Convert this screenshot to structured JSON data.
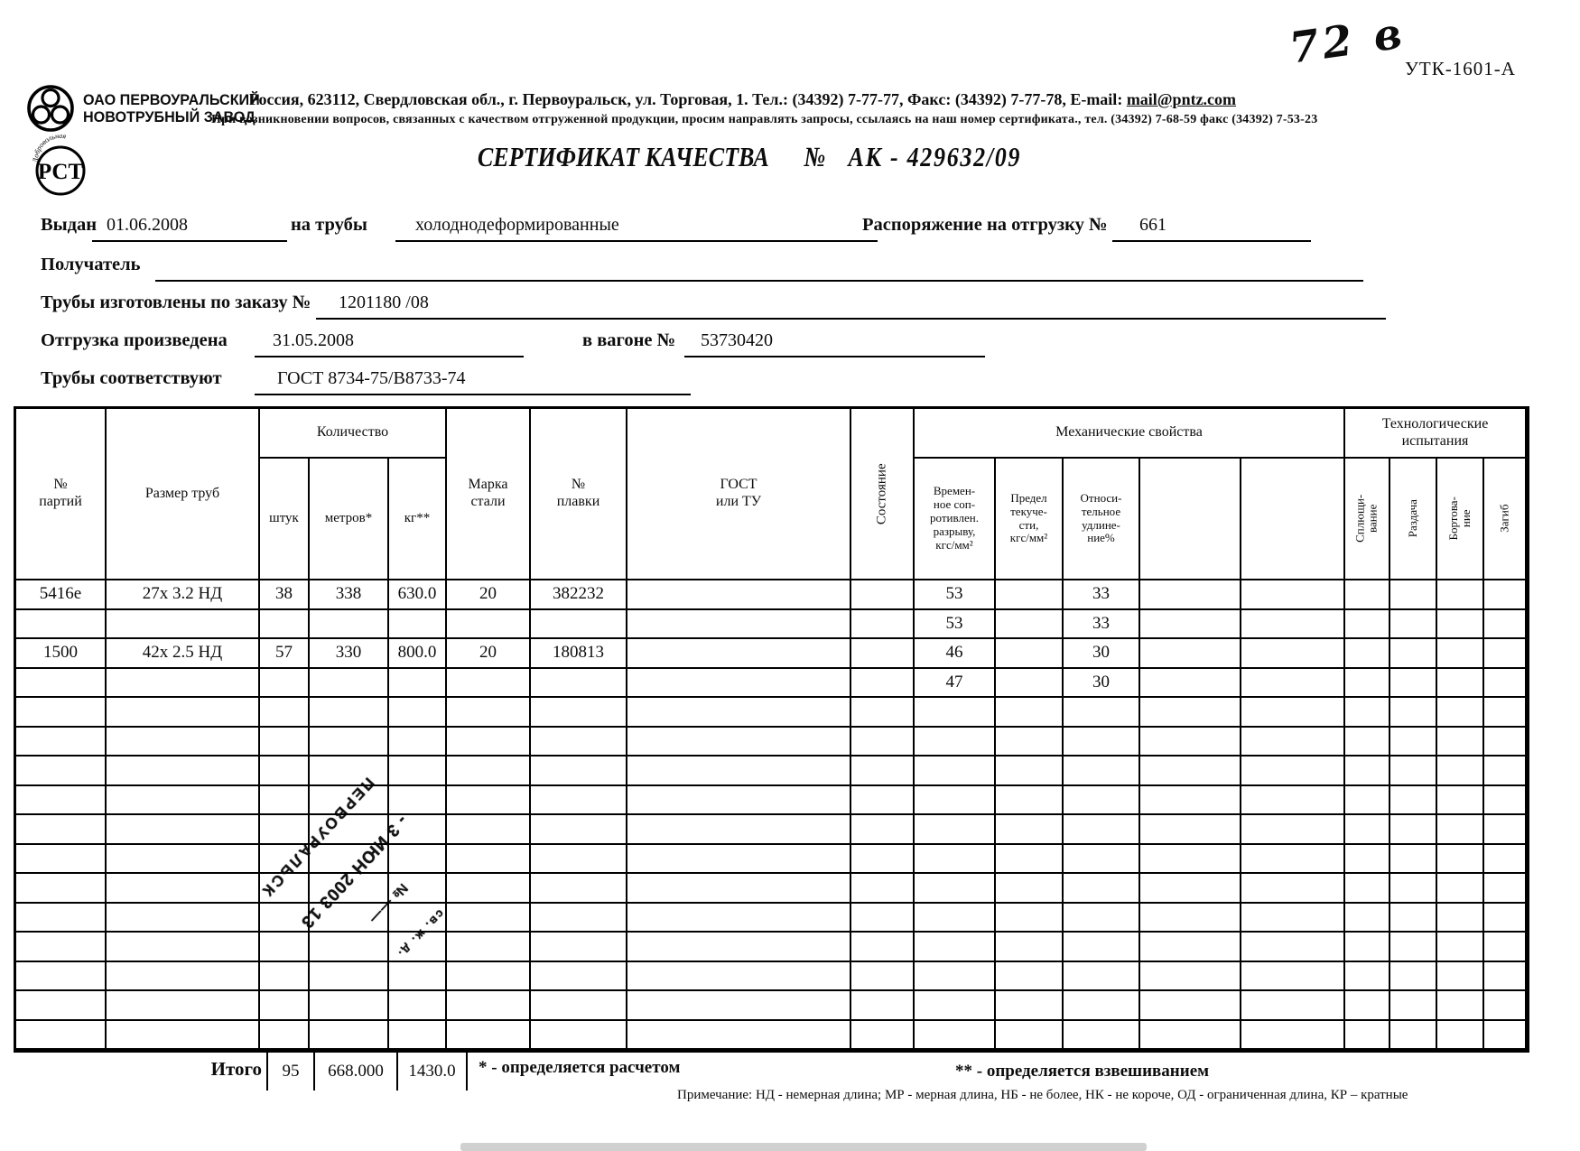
{
  "corner": {
    "handwritten": "72 в",
    "form_code": "УТК-1601-А"
  },
  "company": {
    "name_line1": "ОАО ПЕРВОУРАЛЬСКИЙ",
    "name_line2": "НОВОТРУБНЫЙ ЗАВОД",
    "address_line": "Россия, 623112, Свердловская обл., г. Первоуральск, ул. Торговая, 1. Тел.: (34392) 7-77-77, Факс: (34392) 7-77-78,  E-mail: ",
    "email": "mail@pntz.com",
    "notice_line": "При возникновении вопросов, связанных с качеством отгруженной продукции, просим направлять запросы, ссылаясь на наш номер сертификата., тел. (34392) 7-68-59 факс (34392) 7-53-23",
    "rst_mark": "РСТ",
    "rst_arc": "Добровольная"
  },
  "title": {
    "text": "СЕРТИФИКАТ КАЧЕСТВА",
    "no": "№",
    "number": "АК -  429632/09"
  },
  "form": {
    "issued_label": "Выдан",
    "issued_value": "01.06.2008",
    "pipes_label": "на трубы",
    "pipes_value": "холоднодеформированные",
    "ship_order_label": "Распоряжение на отгрузку №",
    "ship_order_value": "661",
    "receiver_label": "Получатель",
    "receiver_value": "",
    "made_order_label": "Трубы изготовлены по заказу №",
    "made_order_value": "1201180  /08",
    "shipped_label": "Отгрузка произведена",
    "shipped_value": "31.05.2008",
    "wagon_label": "в вагоне №",
    "wagon_value": "53730420",
    "conform_label": "Трубы соответствуют",
    "conform_value": "ГОСТ 8734-75/В8733-74"
  },
  "table": {
    "headers": {
      "party": "№\nпартий",
      "size": "Размер труб",
      "qty": "Количество",
      "pcs": "штук",
      "m": "метров*",
      "kg": "кг**",
      "steel": "Марка\nстали",
      "melt": "№\nплавки",
      "gost": "ГОСТ\nили ТУ",
      "state": "Состояние",
      "mech": "Механические свойства",
      "tensile": "Времен-\nное соп-\nротивлен.\nразрыву,\nкгс/мм²",
      "yield": "Предел\nтекуче-\nсти,\nкгс/мм²",
      "elong": "Относи-\nтельное\nудлине-\nние%",
      "tech": "Технологические\nиспытания",
      "flat": "Сплющи-\nвание",
      "expand": "Раздача",
      "flange": "Бортова-\nние",
      "bend": "Загиб"
    },
    "rows": [
      [
        "5416е",
        "27х 3.2 НД",
        "38",
        "338",
        "630.0",
        "20",
        "382232",
        "",
        "",
        "53",
        "",
        "33",
        "",
        "",
        "",
        "",
        "",
        ""
      ],
      [
        "",
        "",
        "",
        "",
        "",
        "",
        "",
        "",
        "",
        "53",
        "",
        "33",
        "",
        "",
        "",
        "",
        "",
        ""
      ],
      [
        "1500",
        "42х 2.5 НД",
        "57",
        "330",
        "800.0",
        "20",
        "180813",
        "",
        "",
        "46",
        "",
        "30",
        "",
        "",
        "",
        "",
        "",
        ""
      ],
      [
        "",
        "",
        "",
        "",
        "",
        "",
        "",
        "",
        "",
        "47",
        "",
        "30",
        "",
        "",
        "",
        "",
        "",
        ""
      ],
      [
        "",
        "",
        "",
        "",
        "",
        "",
        "",
        "",
        "",
        "",
        "",
        "",
        "",
        "",
        "",
        "",
        "",
        ""
      ],
      [
        "",
        "",
        "",
        "",
        "",
        "",
        "",
        "",
        "",
        "",
        "",
        "",
        "",
        "",
        "",
        "",
        "",
        ""
      ],
      [
        "",
        "",
        "",
        "",
        "",
        "",
        "",
        "",
        "",
        "",
        "",
        "",
        "",
        "",
        "",
        "",
        "",
        ""
      ],
      [
        "",
        "",
        "",
        "",
        "",
        "",
        "",
        "",
        "",
        "",
        "",
        "",
        "",
        "",
        "",
        "",
        "",
        ""
      ],
      [
        "",
        "",
        "",
        "",
        "",
        "",
        "",
        "",
        "",
        "",
        "",
        "",
        "",
        "",
        "",
        "",
        "",
        ""
      ],
      [
        "",
        "",
        "",
        "",
        "",
        "",
        "",
        "",
        "",
        "",
        "",
        "",
        "",
        "",
        "",
        "",
        "",
        ""
      ],
      [
        "",
        "",
        "",
        "",
        "",
        "",
        "",
        "",
        "",
        "",
        "",
        "",
        "",
        "",
        "",
        "",
        "",
        ""
      ],
      [
        "",
        "",
        "",
        "",
        "",
        "",
        "",
        "",
        "",
        "",
        "",
        "",
        "",
        "",
        "",
        "",
        "",
        ""
      ],
      [
        "",
        "",
        "",
        "",
        "",
        "",
        "",
        "",
        "",
        "",
        "",
        "",
        "",
        "",
        "",
        "",
        "",
        ""
      ],
      [
        "",
        "",
        "",
        "",
        "",
        "",
        "",
        "",
        "",
        "",
        "",
        "",
        "",
        "",
        "",
        "",
        "",
        ""
      ],
      [
        "",
        "",
        "",
        "",
        "",
        "",
        "",
        "",
        "",
        "",
        "",
        "",
        "",
        "",
        "",
        "",
        "",
        ""
      ],
      [
        "",
        "",
        "",
        "",
        "",
        "",
        "",
        "",
        "",
        "",
        "",
        "",
        "",
        "",
        "",
        "",
        "",
        ""
      ]
    ],
    "totals": {
      "label": "Итого",
      "pieces": "95",
      "meters": "668.000",
      "kg": "1430.0"
    },
    "footnote1": "* - определяется расчетом",
    "footnote2": "** - определяется взвешиванием",
    "note": "Примечание: НД - немерная длина; МР - мерная длина, НБ - не более, НК - не короче, ОД - ограниченная длина, КР – кратные"
  },
  "stamp": {
    "lines": [
      "св. ж. д.",
      "№ ——",
      "- 3 ИЮН 2003 13",
      "ПЕРВОУРАЛЬСК"
    ]
  }
}
